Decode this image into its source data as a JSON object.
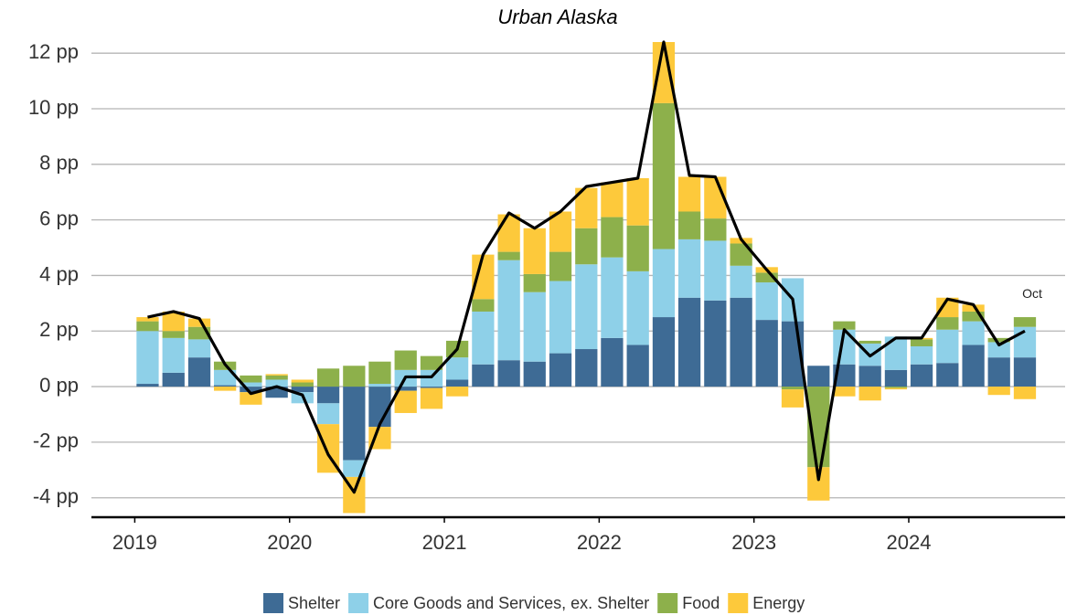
{
  "chart_data": {
    "type": "stacked_bar_line",
    "title": "Urban Alaska",
    "x": [
      2019.083,
      2019.25,
      2019.417,
      2019.583,
      2019.75,
      2019.917,
      2020.083,
      2020.25,
      2020.417,
      2020.583,
      2020.75,
      2020.917,
      2021.083,
      2021.25,
      2021.417,
      2021.583,
      2021.75,
      2021.917,
      2022.083,
      2022.25,
      2022.417,
      2022.583,
      2022.75,
      2022.917,
      2023.083,
      2023.25,
      2023.417,
      2023.583,
      2023.75,
      2023.917,
      2024.083,
      2024.25,
      2024.417,
      2024.583,
      2024.75
    ],
    "series": [
      {
        "name": "Shelter",
        "color": "#3e6b95",
        "values": [
          0.1,
          0.5,
          1.05,
          0.05,
          -0.2,
          -0.4,
          -0.2,
          -0.6,
          -2.65,
          -1.45,
          -0.15,
          -0.05,
          0.25,
          0.8,
          0.95,
          0.9,
          1.2,
          1.35,
          1.75,
          1.5,
          2.5,
          3.2,
          3.1,
          3.2,
          2.4,
          2.35,
          0.75,
          0.8,
          0.75,
          0.6,
          0.8,
          0.85,
          1.5,
          1.05,
          1.05
        ]
      },
      {
        "name": "Core Goods and Services, ex. Shelter",
        "color": "#8ed0e8",
        "values": [
          1.9,
          1.25,
          0.65,
          0.55,
          0.15,
          0.25,
          -0.4,
          -0.75,
          -0.6,
          0.1,
          0.6,
          0.6,
          0.8,
          1.9,
          3.6,
          2.5,
          2.6,
          3.05,
          2.9,
          2.65,
          2.45,
          2.1,
          2.15,
          1.15,
          1.35,
          1.55,
          0,
          1.25,
          0.8,
          1.2,
          0.65,
          1.2,
          0.85,
          0.55,
          1.1
        ]
      },
      {
        "name": "Food",
        "color": "#8db04b",
        "values": [
          0.35,
          0.25,
          0.45,
          0.3,
          0.25,
          0.15,
          0.15,
          0.65,
          0.75,
          0.8,
          0.7,
          0.5,
          0.6,
          0.45,
          0.3,
          0.65,
          1.05,
          1.3,
          1.45,
          1.65,
          5.25,
          1.0,
          0.8,
          0.8,
          0.35,
          -0.1,
          -2.9,
          0.3,
          0.1,
          -0.05,
          0.25,
          0.45,
          0.35,
          0.15,
          0.35
        ]
      },
      {
        "name": "Energy",
        "color": "#fdc93b",
        "values": [
          0.15,
          0.7,
          0.3,
          -0.15,
          -0.45,
          0.05,
          0.1,
          -1.75,
          -1.3,
          -0.8,
          -0.8,
          -0.75,
          -0.35,
          1.6,
          1.35,
          1.65,
          1.45,
          1.45,
          1.25,
          1.7,
          2.2,
          1.25,
          1.5,
          0.2,
          0.2,
          -0.65,
          -1.2,
          -0.35,
          -0.5,
          -0.05,
          0.05,
          0.7,
          0.25,
          -0.3,
          -0.45
        ]
      }
    ],
    "line": {
      "color": "#000000",
      "values": [
        2.5,
        2.7,
        2.45,
        0.8,
        -0.25,
        0.0,
        -0.3,
        -2.45,
        -3.8,
        -1.35,
        0.35,
        0.35,
        1.35,
        4.75,
        6.25,
        5.7,
        6.3,
        7.2,
        7.35,
        7.5,
        12.4,
        7.6,
        7.55,
        5.3,
        4.2,
        3.15,
        -3.35,
        2.05,
        1.1,
        1.75,
        1.75,
        3.15,
        2.95,
        1.5,
        2.0
      ]
    },
    "annotations": [
      {
        "text": "Oct",
        "index": 34
      }
    ],
    "xlim": [
      2018.72,
      2025.01
    ],
    "xticks": [
      2019,
      2020,
      2021,
      2022,
      2023,
      2024
    ],
    "ylim": [
      -4.7,
      12.4
    ],
    "yticks": [
      {
        "value": -4,
        "label": "-4 pp"
      },
      {
        "value": -2,
        "label": "-2 pp"
      },
      {
        "value": 0,
        "label": "0 pp"
      },
      {
        "value": 2,
        "label": "2 pp"
      },
      {
        "value": 4,
        "label": "4 pp"
      },
      {
        "value": 6,
        "label": "6 pp"
      },
      {
        "value": 8,
        "label": "8 pp"
      },
      {
        "value": 10,
        "label": "10 pp"
      },
      {
        "value": 12,
        "label": "12 pp"
      }
    ],
    "grid": true,
    "legend": "bottom"
  }
}
